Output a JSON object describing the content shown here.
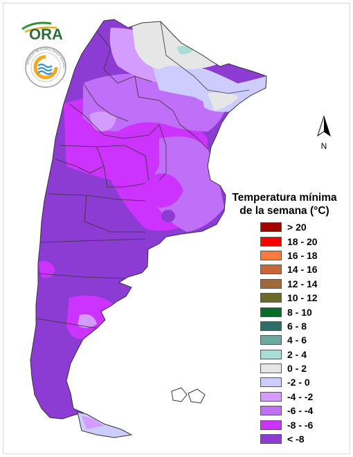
{
  "header": {
    "logo_text": "ORA",
    "seal_text": "SERVICIO METEOROLOGICO NACIONAL · ARGENTINA"
  },
  "north_arrow": {
    "label": "N"
  },
  "legend": {
    "title_line1": "Temperatura mínima",
    "title_line2": "de la semana (°C)",
    "items": [
      {
        "label": "> 20",
        "color": "#a50000"
      },
      {
        "label": "18 - 20",
        "color": "#ff0000"
      },
      {
        "label": "16 - 18",
        "color": "#ff7a3c"
      },
      {
        "label": "14 - 16",
        "color": "#c8663a"
      },
      {
        "label": "12 - 14",
        "color": "#a0693a"
      },
      {
        "label": "10 - 12",
        "color": "#6a6a2a"
      },
      {
        "label": "8 - 10",
        "color": "#0a6a2a"
      },
      {
        "label": "6 - 8",
        "color": "#2e6e66"
      },
      {
        "label": "4 - 6",
        "color": "#6aa8a0"
      },
      {
        "label": "2 - 4",
        "color": "#a8dcd4"
      },
      {
        "label": "0 - 2",
        "color": "#e6e6e6"
      },
      {
        "label": "-2 - 0",
        "color": "#ccccff"
      },
      {
        "label": "-4 - -2",
        "color": "#d49cff"
      },
      {
        "label": "-6 - -4",
        "color": "#c070f8"
      },
      {
        "label": "-8 - -6",
        "color": "#cc33ff"
      },
      {
        "label": "< -8",
        "color": "#8c3cd2"
      }
    ]
  },
  "map": {
    "dominant_class": "< -8",
    "colors": {
      "coldest": "#8c3cd2",
      "very_cold": "#cc33ff",
      "cold": "#c070f8",
      "cool": "#d49cff",
      "near_zero": "#ccccff",
      "zero_two": "#e6e6e6",
      "two_four": "#a8dcd4",
      "border": "#333333"
    }
  }
}
